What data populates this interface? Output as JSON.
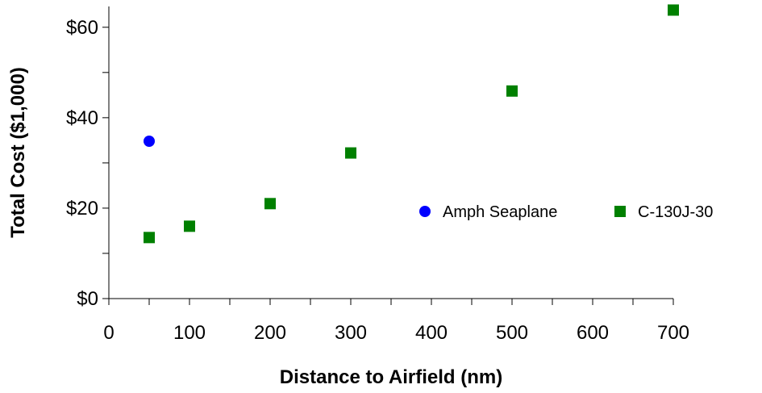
{
  "chart_data": {
    "type": "scatter",
    "title": "",
    "xlabel": "Distance to Airfield (nm)",
    "ylabel": "Total Cost ($1,000)",
    "xlim": [
      0,
      700
    ],
    "ylim": [
      0,
      60
    ],
    "x_ticks": [
      0,
      100,
      200,
      300,
      400,
      500,
      600,
      700
    ],
    "x_tick_labels": [
      "0",
      "100",
      "200",
      "300",
      "400",
      "500",
      "600",
      "700"
    ],
    "y_ticks": [
      0,
      20,
      40,
      60
    ],
    "y_tick_labels": [
      "$0",
      "$20",
      "$40",
      "$60"
    ],
    "grid": false,
    "legend_position": "right",
    "series": [
      {
        "name": "Amph Seaplane",
        "marker": "circle",
        "color": "#0000ff",
        "points": [
          {
            "x": 50,
            "y": 34.8
          }
        ]
      },
      {
        "name": "C-130J-30",
        "marker": "square",
        "color": "#008000",
        "points": [
          {
            "x": 50,
            "y": 13.5
          },
          {
            "x": 100,
            "y": 16
          },
          {
            "x": 200,
            "y": 21
          },
          {
            "x": 300,
            "y": 32.2
          },
          {
            "x": 500,
            "y": 45.9
          },
          {
            "x": 700,
            "y": 63.8
          }
        ]
      }
    ]
  }
}
